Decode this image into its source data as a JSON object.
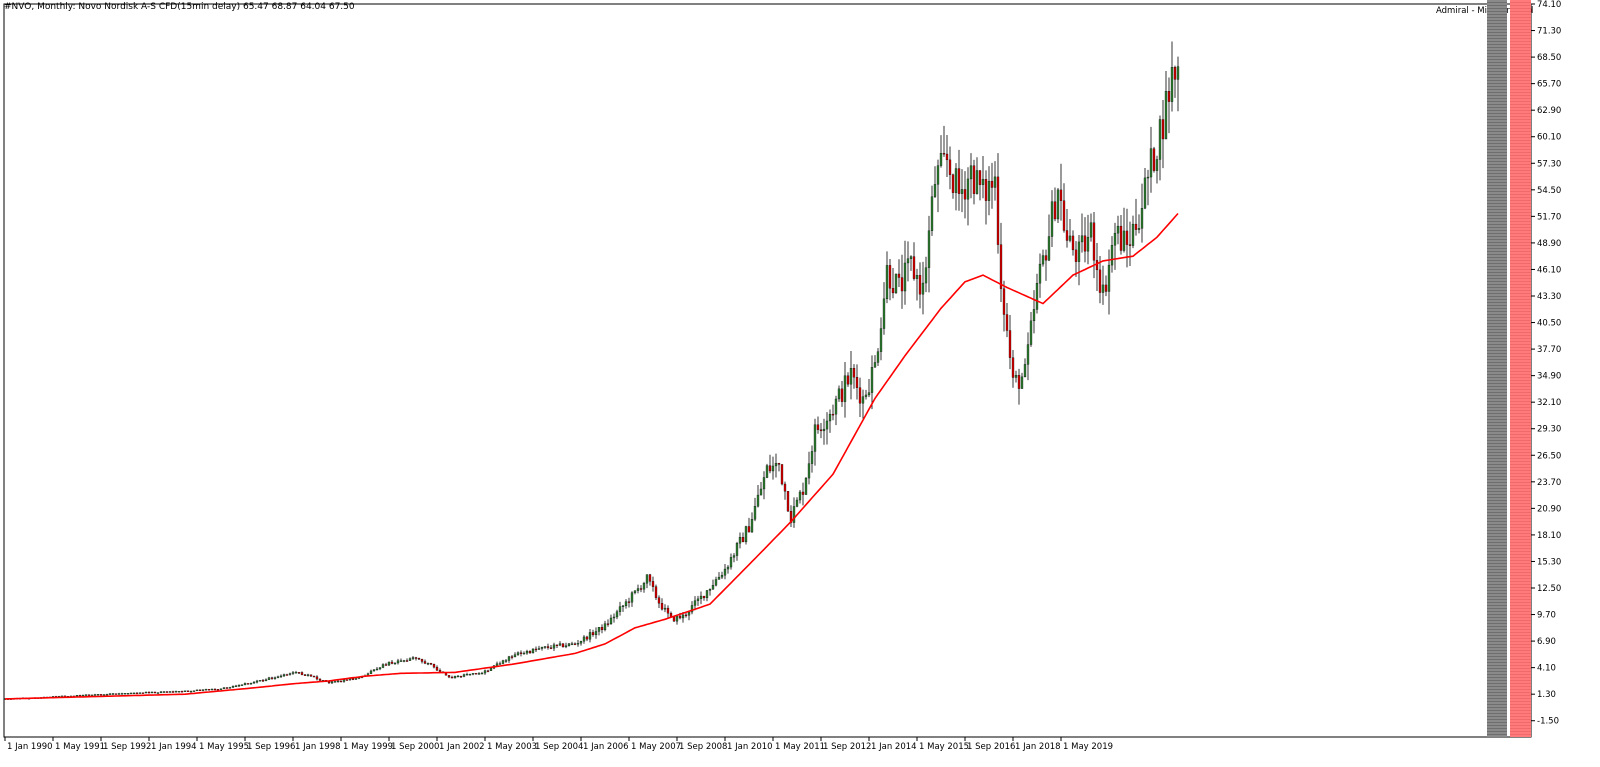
{
  "header": {
    "title": "#NVO, Monthly:  Novo Nordisk A-S CFD(15min delay)  65.47 68.87 64.04 67.50",
    "brand": "Admiral - Mini Terminal"
  },
  "colors": {
    "bull": "#2e7d32",
    "bear": "#d50000",
    "ma": "#ff0000",
    "wick": "#000000"
  },
  "chart_data": {
    "type": "candlestick",
    "title": "",
    "xlabel": "",
    "ylabel": "",
    "ylim": [
      -2.9,
      74.1
    ],
    "y_ticks": [
      "74.10",
      "71.30",
      "68.50",
      "65.70",
      "62.90",
      "60.10",
      "57.30",
      "54.50",
      "51.70",
      "48.90",
      "46.10",
      "43.30",
      "40.50",
      "37.70",
      "34.90",
      "32.10",
      "29.30",
      "26.50",
      "23.70",
      "20.90",
      "18.10",
      "15.30",
      "12.50",
      "9.70",
      "6.90",
      "4.10",
      "1.30",
      "-1.50"
    ],
    "x_ticks": [
      "1 Jan 1990",
      "1 May 1991",
      "1 Sep 1992",
      "1 Jan 1994",
      "1 May 1995",
      "1 Sep 1996",
      "1 Jan 1998",
      "1 May 1999",
      "1 Sep 2000",
      "1 Jan 2002",
      "1 May 2003",
      "1 Sep 2004",
      "1 Jan 2006",
      "1 May 2007",
      "1 Sep 2008",
      "1 Jan 2010",
      "1 May 2011",
      "1 Sep 2012",
      "1 Jan 2014",
      "1 May 2015",
      "1 Sep 2016",
      "1 Jan 2018",
      "1 May 2019"
    ],
    "price_anchors": [
      {
        "t": 0,
        "v": 0.8
      },
      {
        "t": 8,
        "v": 0.9
      },
      {
        "t": 20,
        "v": 1.1
      },
      {
        "t": 40,
        "v": 1.4
      },
      {
        "t": 60,
        "v": 1.6
      },
      {
        "t": 72,
        "v": 1.9
      },
      {
        "t": 84,
        "v": 2.6
      },
      {
        "t": 96,
        "v": 3.6
      },
      {
        "t": 100,
        "v": 3.4
      },
      {
        "t": 108,
        "v": 2.5
      },
      {
        "t": 118,
        "v": 3.0
      },
      {
        "t": 128,
        "v": 4.6
      },
      {
        "t": 136,
        "v": 5.0
      },
      {
        "t": 140,
        "v": 4.7
      },
      {
        "t": 143,
        "v": 4.2
      },
      {
        "t": 148,
        "v": 3.0
      },
      {
        "t": 160,
        "v": 3.7
      },
      {
        "t": 170,
        "v": 5.5
      },
      {
        "t": 180,
        "v": 6.2
      },
      {
        "t": 190,
        "v": 6.6
      },
      {
        "t": 200,
        "v": 8.5
      },
      {
        "t": 210,
        "v": 12.0
      },
      {
        "t": 214,
        "v": 13.5
      },
      {
        "t": 218,
        "v": 11.0
      },
      {
        "t": 222,
        "v": 9.2
      },
      {
        "t": 226,
        "v": 9.5
      },
      {
        "t": 232,
        "v": 11.5
      },
      {
        "t": 240,
        "v": 14.5
      },
      {
        "t": 248,
        "v": 19.0
      },
      {
        "t": 254,
        "v": 25.0
      },
      {
        "t": 258,
        "v": 25.5
      },
      {
        "t": 262,
        "v": 20.0
      },
      {
        "t": 266,
        "v": 23.0
      },
      {
        "t": 270,
        "v": 29.0
      },
      {
        "t": 276,
        "v": 31.5
      },
      {
        "t": 282,
        "v": 35.0
      },
      {
        "t": 286,
        "v": 32.5
      },
      {
        "t": 290,
        "v": 36.0
      },
      {
        "t": 294,
        "v": 46.0
      },
      {
        "t": 298,
        "v": 44.0
      },
      {
        "t": 302,
        "v": 46.5
      },
      {
        "t": 306,
        "v": 44.0
      },
      {
        "t": 310,
        "v": 55.5
      },
      {
        "t": 314,
        "v": 57.5
      },
      {
        "t": 318,
        "v": 54.0
      },
      {
        "t": 322,
        "v": 56.5
      },
      {
        "t": 326,
        "v": 54.0
      },
      {
        "t": 330,
        "v": 55.5
      },
      {
        "t": 332,
        "v": 45.0
      },
      {
        "t": 336,
        "v": 34.0
      },
      {
        "t": 340,
        "v": 35.0
      },
      {
        "t": 344,
        "v": 44.0
      },
      {
        "t": 348,
        "v": 50.0
      },
      {
        "t": 351,
        "v": 55.0
      },
      {
        "t": 354,
        "v": 49.0
      },
      {
        "t": 358,
        "v": 47.5
      },
      {
        "t": 362,
        "v": 50.0
      },
      {
        "t": 366,
        "v": 43.5
      },
      {
        "t": 370,
        "v": 50.0
      },
      {
        "t": 374,
        "v": 48.5
      },
      {
        "t": 378,
        "v": 52.0
      },
      {
        "t": 382,
        "v": 57.0
      },
      {
        "t": 386,
        "v": 62.0
      },
      {
        "t": 389,
        "v": 66.5
      },
      {
        "t": 391,
        "v": 67.5
      }
    ],
    "ma_anchors": [
      {
        "t": 0,
        "v": 0.8
      },
      {
        "t": 60,
        "v": 1.3
      },
      {
        "t": 84,
        "v": 2.0
      },
      {
        "t": 96,
        "v": 2.4
      },
      {
        "t": 108,
        "v": 2.7
      },
      {
        "t": 120,
        "v": 3.2
      },
      {
        "t": 132,
        "v": 3.5
      },
      {
        "t": 150,
        "v": 3.6
      },
      {
        "t": 170,
        "v": 4.5
      },
      {
        "t": 190,
        "v": 5.6
      },
      {
        "t": 200,
        "v": 6.6
      },
      {
        "t": 210,
        "v": 8.3
      },
      {
        "t": 220,
        "v": 9.2
      },
      {
        "t": 235,
        "v": 10.8
      },
      {
        "t": 250,
        "v": 15.6
      },
      {
        "t": 262,
        "v": 19.5
      },
      {
        "t": 276,
        "v": 24.5
      },
      {
        "t": 290,
        "v": 32.5
      },
      {
        "t": 300,
        "v": 37.0
      },
      {
        "t": 312,
        "v": 42.0
      },
      {
        "t": 320,
        "v": 44.8
      },
      {
        "t": 326,
        "v": 45.5
      },
      {
        "t": 334,
        "v": 44.2
      },
      {
        "t": 346,
        "v": 42.5
      },
      {
        "t": 356,
        "v": 45.5
      },
      {
        "t": 366,
        "v": 47.0
      },
      {
        "t": 376,
        "v": 47.5
      },
      {
        "t": 384,
        "v": 49.5
      },
      {
        "t": 391,
        "v": 52.0
      }
    ],
    "series": []
  }
}
